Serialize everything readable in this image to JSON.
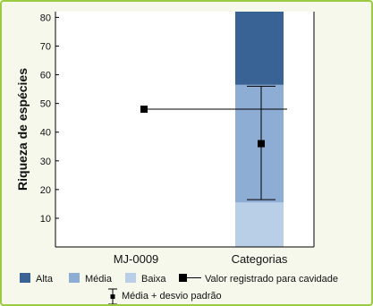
{
  "chart_data": {
    "type": "bar",
    "ylabel": "Riqueza de espécies",
    "xlabel": "",
    "ylim": [
      0,
      82
    ],
    "yticks": [
      10,
      20,
      30,
      40,
      50,
      60,
      70,
      80
    ],
    "categories": [
      "MJ-0009",
      "Categorias"
    ],
    "stacked_bar": {
      "category": "Categorias",
      "bands": [
        {
          "name": "Baixa",
          "from": 0,
          "to": 15.5,
          "color": "#b9cfe8"
        },
        {
          "name": "Média",
          "from": 15.5,
          "to": 56.5,
          "color": "#8eadd4"
        },
        {
          "name": "Alta",
          "from": 56.5,
          "to": 82,
          "color": "#3a6395"
        }
      ]
    },
    "mean_sd": {
      "category": "Categorias",
      "mean": 36,
      "lower": 16.5,
      "upper": 56,
      "label": "Média + desvio padrão"
    },
    "cave_value": {
      "category": "MJ-0009",
      "value": 48,
      "label": "Valor registrado para cavidade"
    },
    "legend": {
      "alta": "Alta",
      "media": "Média",
      "baixa": "Baixa",
      "cave": "Valor registrado para cavidade",
      "meansd": "Média + desvio padrão"
    }
  }
}
